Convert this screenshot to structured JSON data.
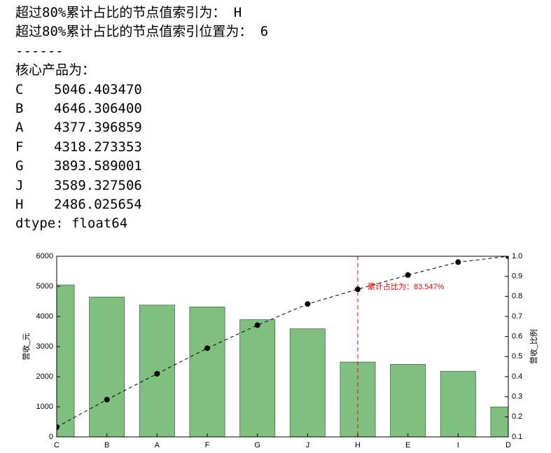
{
  "output": {
    "lines": [
      "超过80%累计占比的节点值索引为： H",
      "超过80%累计占比的节点值索引位置为： 6",
      "------",
      "核心产品为："
    ],
    "series": [
      {
        "index": "C",
        "value": "5046.403470"
      },
      {
        "index": "B",
        "value": "4646.306400"
      },
      {
        "index": "A",
        "value": "4377.396859"
      },
      {
        "index": "F",
        "value": "4318.273353"
      },
      {
        "index": "G",
        "value": "3893.589001"
      },
      {
        "index": "J",
        "value": "3589.327506"
      },
      {
        "index": "H",
        "value": "2486.025654"
      }
    ],
    "dtype": "dtype: float64"
  },
  "chart_data": {
    "type": "bar",
    "ylabel": "营收_元",
    "y2label": "营收_比例",
    "categories": [
      "C",
      "B",
      "A",
      "F",
      "G",
      "J",
      "H",
      "E",
      "I",
      "D"
    ],
    "xlim": [
      0,
      9
    ],
    "ylim": [
      0,
      6000
    ],
    "yticks": [
      0,
      1000,
      2000,
      3000,
      4000,
      5000,
      6000
    ],
    "y2lim": [
      0.1,
      1.0
    ],
    "y2ticks": [
      0.1,
      0.2,
      0.3,
      0.4,
      0.5,
      0.6,
      0.7,
      0.8,
      0.9,
      {
        "value": 1.0,
        "label": "1.0"
      }
    ],
    "series": [
      {
        "type": "bar",
        "color": "#7fbf7f",
        "values": [
          5046.40347,
          4646.3064,
          4377.396859,
          4318.273353,
          3893.589001,
          3589.327506,
          2486.025654,
          2410,
          2180,
          995
        ]
      },
      {
        "type": "line",
        "axis": "y2",
        "color": "#000000",
        "values": [
          0.1487,
          0.2856,
          0.4145,
          0.5418,
          0.6565,
          0.7622,
          0.83547,
          0.9065,
          0.9707,
          1.0
        ]
      }
    ],
    "annotation": {
      "text": "累计占比为：83.547%",
      "x": 6,
      "y": 0.83547,
      "color": "#ff0000"
    }
  }
}
